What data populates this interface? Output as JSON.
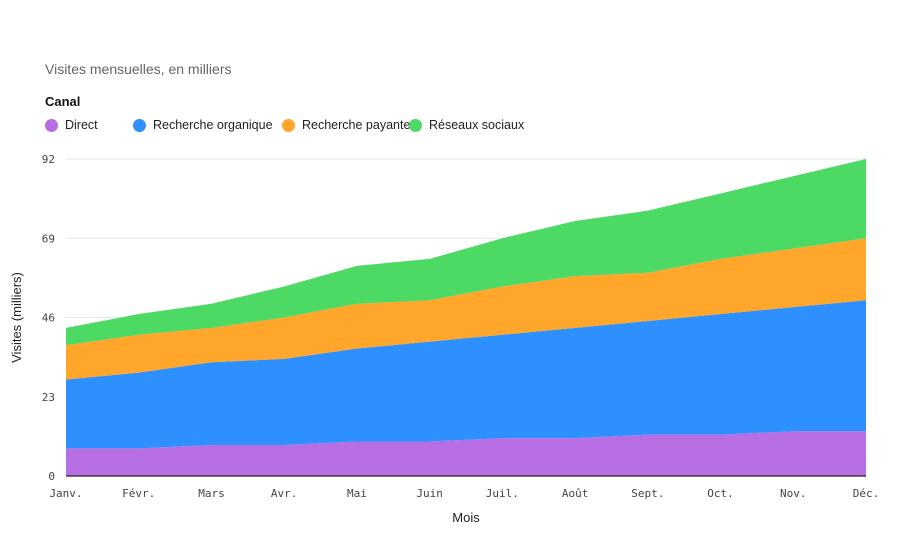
{
  "subtitle": "Visites mensuelles, en milliers",
  "legend_title": "Canal",
  "chart_data": {
    "type": "area",
    "stacked": true,
    "subtitle": "Visites mensuelles, en milliers",
    "xlabel": "Mois",
    "ylabel": "Visites (milliers)",
    "categories": [
      "Janv.",
      "Févr.",
      "Mars",
      "Avr.",
      "Mai",
      "Juin",
      "Juil.",
      "Août",
      "Sept.",
      "Oct.",
      "Nov.",
      "Déc."
    ],
    "ylim": [
      0,
      92
    ],
    "yticks": [
      0,
      23,
      46,
      69,
      92
    ],
    "grid": true,
    "legend_position": "top-left",
    "legend_title": "Canal",
    "series": [
      {
        "name": "Direct",
        "color": "#b86ee3",
        "values": [
          8,
          8,
          9,
          9,
          10,
          10,
          11,
          11,
          12,
          12,
          13,
          13
        ]
      },
      {
        "name": "Recherche organique",
        "color": "#2e90ff",
        "values": [
          20,
          22,
          24,
          25,
          27,
          29,
          30,
          32,
          33,
          35,
          36,
          38
        ]
      },
      {
        "name": "Recherche payante",
        "color": "#ffa62b",
        "values": [
          10,
          11,
          10,
          12,
          13,
          12,
          14,
          15,
          14,
          16,
          17,
          18
        ]
      },
      {
        "name": "Réseaux sociaux",
        "color": "#4cd964",
        "values": [
          5,
          6,
          7,
          9,
          11,
          12,
          14,
          16,
          18,
          19,
          21,
          23
        ]
      }
    ]
  }
}
